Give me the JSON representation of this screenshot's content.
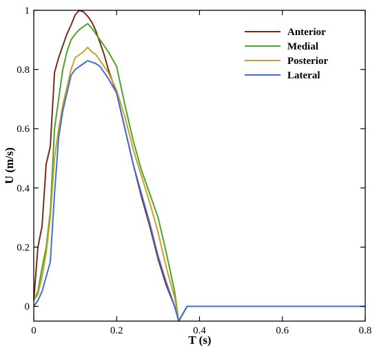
{
  "chart_data": {
    "type": "line",
    "title": "",
    "xlabel": "T (s)",
    "ylabel": "U (m/s)",
    "xlim": [
      0,
      0.8
    ],
    "ylim": [
      -0.05,
      1
    ],
    "xticks": [
      0,
      0.2,
      0.4,
      0.6,
      0.8
    ],
    "xtick_labels": [
      "0",
      "0.2",
      "0.4",
      "0.6",
      "0.8"
    ],
    "yticks": [
      0,
      0.2,
      0.4,
      0.6,
      0.8,
      1
    ],
    "ytick_labels": [
      "0",
      "0.2",
      "0.4",
      "0.6",
      "0.8",
      "1"
    ],
    "grid": false,
    "legend_position": "top-right",
    "series": [
      {
        "name": "Anterior",
        "color": "#7a2a12",
        "x": [
          0,
          0.01,
          0.02,
          0.03,
          0.04,
          0.05,
          0.06,
          0.07,
          0.08,
          0.09,
          0.1,
          0.11,
          0.12,
          0.13,
          0.14,
          0.15,
          0.16,
          0.17,
          0.18,
          0.2,
          0.22,
          0.24,
          0.26,
          0.28,
          0.3,
          0.32,
          0.34,
          0.35,
          0.37,
          0.4,
          0.5,
          0.6,
          0.7,
          0.8
        ],
        "y": [
          0.02,
          0.2,
          0.27,
          0.48,
          0.54,
          0.79,
          0.84,
          0.88,
          0.92,
          0.95,
          0.985,
          1.0,
          0.995,
          0.98,
          0.96,
          0.93,
          0.89,
          0.85,
          0.8,
          0.72,
          0.6,
          0.48,
          0.37,
          0.27,
          0.16,
          0.07,
          0.0,
          -0.05,
          0.0,
          0.0,
          0.0,
          0.0,
          0.0,
          0.0
        ]
      },
      {
        "name": "Medial",
        "color": "#4aa526",
        "x": [
          0,
          0.01,
          0.02,
          0.03,
          0.04,
          0.05,
          0.06,
          0.07,
          0.08,
          0.09,
          0.1,
          0.11,
          0.12,
          0.13,
          0.14,
          0.15,
          0.16,
          0.17,
          0.18,
          0.2,
          0.22,
          0.24,
          0.26,
          0.28,
          0.3,
          0.32,
          0.34,
          0.35,
          0.37,
          0.4,
          0.5,
          0.6,
          0.7,
          0.8
        ],
        "y": [
          0.02,
          0.05,
          0.13,
          0.2,
          0.32,
          0.6,
          0.7,
          0.8,
          0.86,
          0.9,
          0.92,
          0.935,
          0.945,
          0.955,
          0.94,
          0.92,
          0.9,
          0.88,
          0.86,
          0.81,
          0.68,
          0.56,
          0.46,
          0.38,
          0.3,
          0.18,
          0.05,
          -0.05,
          0.0,
          0.0,
          0.0,
          0.0,
          0.0,
          0.0
        ]
      },
      {
        "name": "Posterior",
        "color": "#c9a12a",
        "x": [
          0,
          0.01,
          0.02,
          0.03,
          0.04,
          0.05,
          0.06,
          0.07,
          0.08,
          0.09,
          0.1,
          0.11,
          0.12,
          0.13,
          0.14,
          0.15,
          0.16,
          0.17,
          0.18,
          0.2,
          0.22,
          0.24,
          0.26,
          0.28,
          0.3,
          0.32,
          0.34,
          0.35,
          0.37,
          0.4,
          0.5,
          0.6,
          0.7,
          0.8
        ],
        "y": [
          0.02,
          0.04,
          0.1,
          0.18,
          0.3,
          0.5,
          0.6,
          0.68,
          0.74,
          0.8,
          0.84,
          0.85,
          0.86,
          0.875,
          0.86,
          0.85,
          0.83,
          0.81,
          0.79,
          0.73,
          0.64,
          0.53,
          0.44,
          0.35,
          0.25,
          0.13,
          0.03,
          -0.05,
          0.0,
          0.0,
          0.0,
          0.0,
          0.0,
          0.0
        ]
      },
      {
        "name": "Lateral",
        "color": "#3d6ed8",
        "x": [
          0,
          0.01,
          0.02,
          0.03,
          0.04,
          0.05,
          0.06,
          0.07,
          0.08,
          0.09,
          0.1,
          0.11,
          0.12,
          0.13,
          0.14,
          0.15,
          0.16,
          0.17,
          0.18,
          0.2,
          0.22,
          0.24,
          0.26,
          0.28,
          0.3,
          0.32,
          0.34,
          0.35,
          0.37,
          0.4,
          0.5,
          0.6,
          0.7,
          0.8
        ],
        "y": [
          0.0,
          0.02,
          0.05,
          0.1,
          0.15,
          0.38,
          0.57,
          0.66,
          0.72,
          0.78,
          0.8,
          0.81,
          0.82,
          0.83,
          0.825,
          0.82,
          0.81,
          0.79,
          0.77,
          0.72,
          0.6,
          0.48,
          0.38,
          0.28,
          0.17,
          0.08,
          0.0,
          -0.05,
          0.0,
          0.0,
          0.0,
          0.0,
          0.0,
          0.0
        ]
      }
    ]
  }
}
